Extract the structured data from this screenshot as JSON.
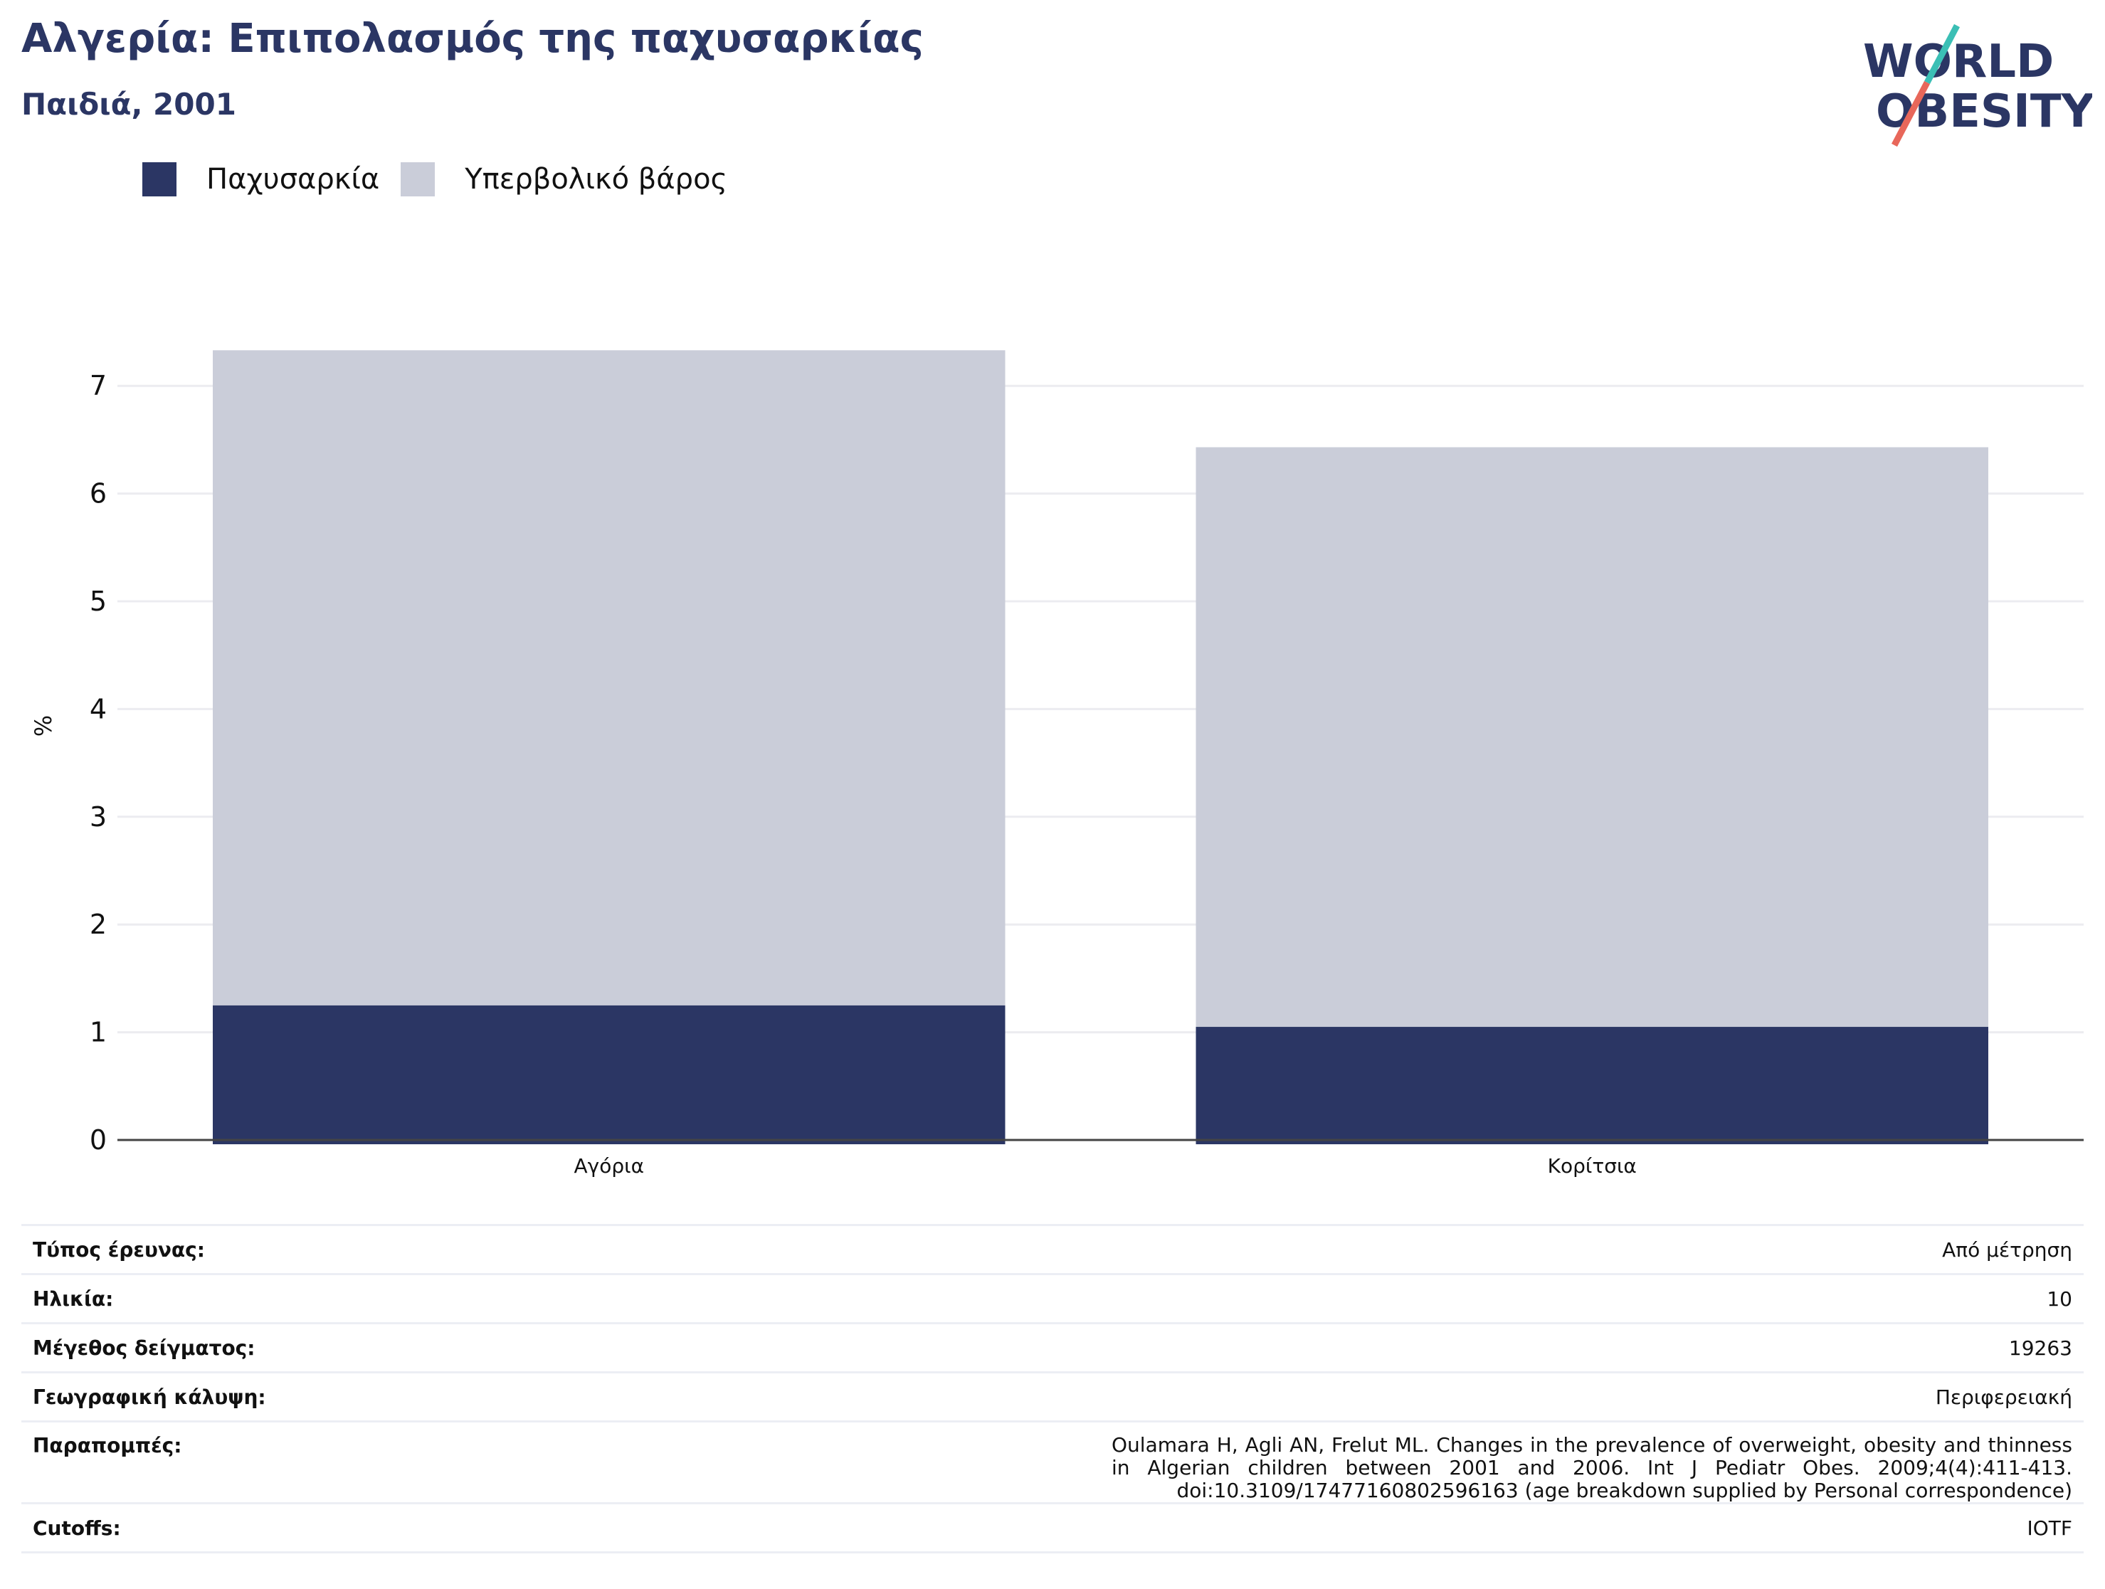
{
  "header": {
    "title": "Αλγερία: Επιπολασμός της παχυσαρκίας",
    "subtitle": "Παιδιά, 2001"
  },
  "logo": {
    "line1": "WORLD",
    "line2": "OBESITY",
    "colors": {
      "text": "#2b3664",
      "slash_top": "#3bbfb5",
      "slash_bottom": "#e8675a"
    }
  },
  "chart_data": {
    "type": "bar",
    "stacked": true,
    "categories": [
      "Αγόρια",
      "Κορίτσια"
    ],
    "series": [
      {
        "name": "Παχυσαρκία",
        "values": [
          1.25,
          1.05
        ],
        "color": "#2b3664"
      },
      {
        "name": "Υπερβολικό βάρος",
        "values": [
          6.08,
          5.38
        ],
        "color": "#cacdd9"
      }
    ],
    "ylabel": "%",
    "xlabel": "",
    "ylim": [
      0,
      7.5
    ],
    "yticks": [
      0,
      1,
      2,
      3,
      4,
      5,
      6,
      7
    ],
    "grid": true,
    "legend_position": "top-left"
  },
  "info": [
    {
      "label": "Τύπος έρευνας:",
      "value": "Από μέτρηση"
    },
    {
      "label": "Ηλικία:",
      "value": "10"
    },
    {
      "label": "Μέγεθος δείγματος:",
      "value": "19263"
    },
    {
      "label": "Γεωγραφική κάλυψη:",
      "value": "Περιφερειακή"
    },
    {
      "label": "Παραπομπές:",
      "value": "Oulamara H, Agli AN, Frelut ML. Changes in the prevalence of overweight, obesity and thinness in Algerian children between 2001 and 2006. Int J Pediatr Obes. 2009;4(4):411-413. doi:10.3109/17477160802596163 (age breakdown supplied by Personal correspondence)"
    },
    {
      "label": "Cutoffs:",
      "value": "IOTF"
    }
  ]
}
